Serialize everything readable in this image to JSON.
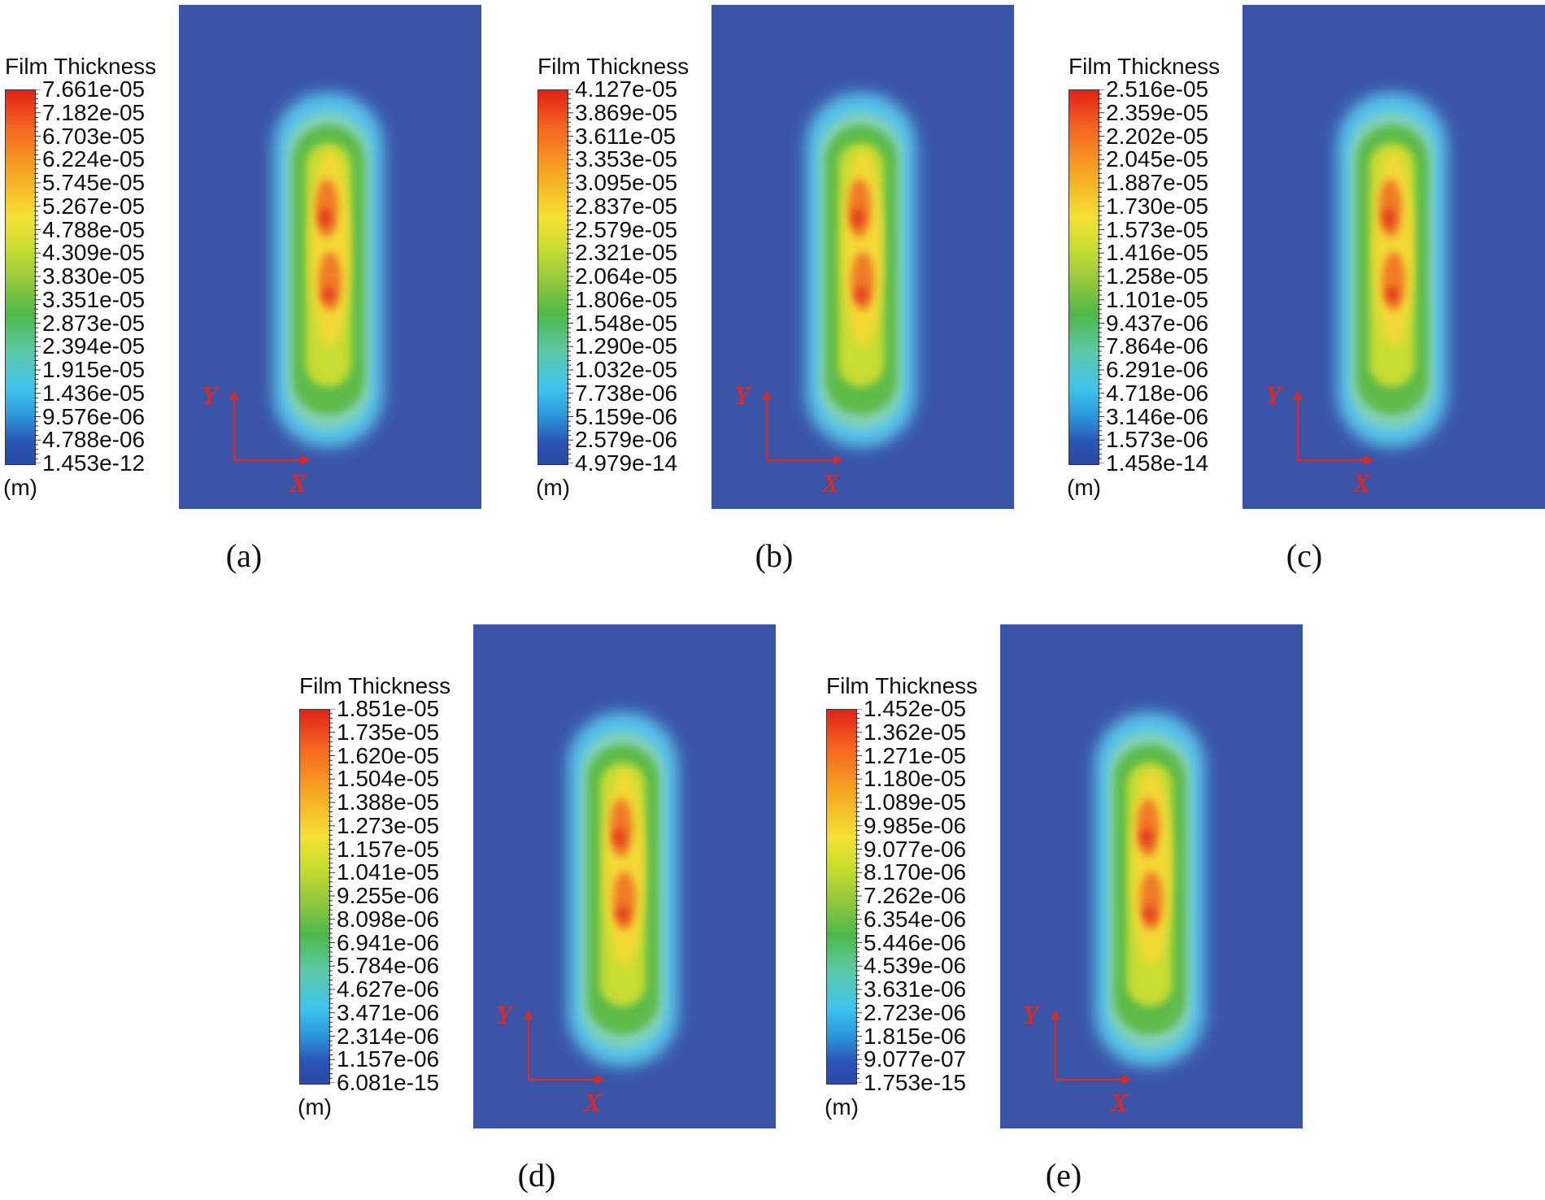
{
  "chart_data": [
    {
      "type": "heatmap",
      "caption": "(a)",
      "legend_title": "Film Thickness",
      "unit": "(m)",
      "colorbar_ticks": [
        "7.661e-05",
        "7.182e-05",
        "6.703e-05",
        "6.224e-05",
        "5.745e-05",
        "5.267e-05",
        "4.788e-05",
        "4.309e-05",
        "3.830e-05",
        "3.351e-05",
        "2.873e-05",
        "2.394e-05",
        "1.915e-05",
        "1.436e-05",
        "9.576e-06",
        "4.788e-06",
        "1.453e-12"
      ],
      "range": [
        1.453e-12,
        7.661e-05
      ],
      "axis_labels": {
        "x": "X",
        "y": "Y"
      }
    },
    {
      "type": "heatmap",
      "caption": "(b)",
      "legend_title": "Film Thickness",
      "unit": "(m)",
      "colorbar_ticks": [
        "4.127e-05",
        "3.869e-05",
        "3.611e-05",
        "3.353e-05",
        "3.095e-05",
        "2.837e-05",
        "2.579e-05",
        "2.321e-05",
        "2.064e-05",
        "1.806e-05",
        "1.548e-05",
        "1.290e-05",
        "1.032e-05",
        "7.738e-06",
        "5.159e-06",
        "2.579e-06",
        "4.979e-14"
      ],
      "range": [
        4.979e-14,
        4.127e-05
      ],
      "axis_labels": {
        "x": "X",
        "y": "Y"
      }
    },
    {
      "type": "heatmap",
      "caption": "(c)",
      "legend_title": "Film Thickness",
      "unit": "(m)",
      "colorbar_ticks": [
        "2.516e-05",
        "2.359e-05",
        "2.202e-05",
        "2.045e-05",
        "1.887e-05",
        "1.730e-05",
        "1.573e-05",
        "1.416e-05",
        "1.258e-05",
        "1.101e-05",
        "9.437e-06",
        "7.864e-06",
        "6.291e-06",
        "4.718e-06",
        "3.146e-06",
        "1.573e-06",
        "1.458e-14"
      ],
      "range": [
        1.458e-14,
        2.516e-05
      ],
      "axis_labels": {
        "x": "X",
        "y": "Y"
      }
    },
    {
      "type": "heatmap",
      "caption": "(d)",
      "legend_title": "Film Thickness",
      "unit": "(m)",
      "colorbar_ticks": [
        "1.851e-05",
        "1.735e-05",
        "1.620e-05",
        "1.504e-05",
        "1.388e-05",
        "1.273e-05",
        "1.157e-05",
        "1.041e-05",
        "9.255e-06",
        "8.098e-06",
        "6.941e-06",
        "5.784e-06",
        "4.627e-06",
        "3.471e-06",
        "2.314e-06",
        "1.157e-06",
        "6.081e-15"
      ],
      "range": [
        6.081e-15,
        1.851e-05
      ],
      "axis_labels": {
        "x": "X",
        "y": "Y"
      }
    },
    {
      "type": "heatmap",
      "caption": "(e)",
      "legend_title": "Film Thickness",
      "unit": "(m)",
      "colorbar_ticks": [
        "1.452e-05",
        "1.362e-05",
        "1.271e-05",
        "1.180e-05",
        "1.089e-05",
        "9.985e-06",
        "9.077e-06",
        "8.170e-06",
        "7.262e-06",
        "6.354e-06",
        "5.446e-06",
        "4.539e-06",
        "3.631e-06",
        "2.723e-06",
        "1.815e-06",
        "9.077e-07",
        "1.753e-15"
      ],
      "range": [
        1.753e-15,
        1.452e-05
      ],
      "axis_labels": {
        "x": "X",
        "y": "Y"
      }
    }
  ],
  "colors": {
    "background_field": "#3a55a8",
    "axis_arrows": "#d62a2a"
  }
}
